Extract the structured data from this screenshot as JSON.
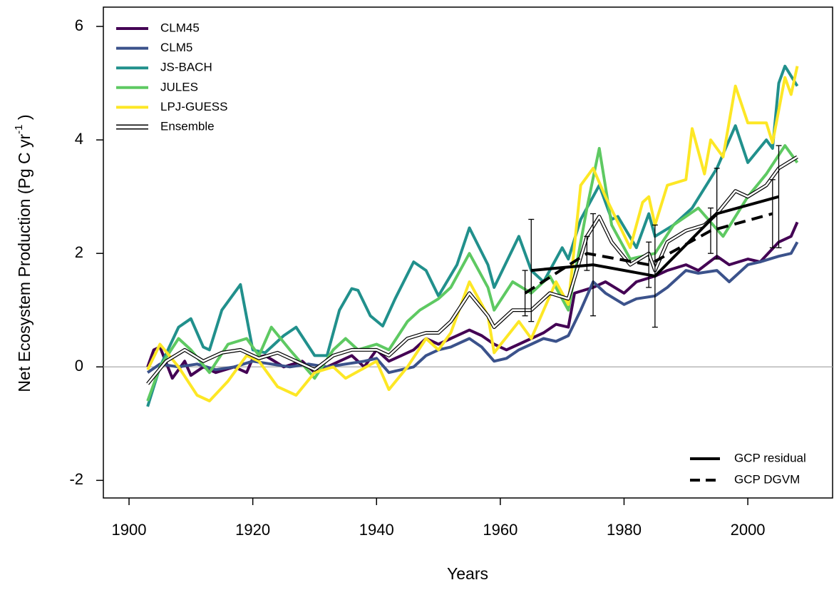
{
  "chart_data": {
    "type": "line",
    "xlabel": "Years",
    "ylabel": {
      "text": "Net Ecosystem Production (Pg C yr",
      "sup": "-1",
      "close": " )"
    },
    "xlim": [
      1895.85,
      2013.7
    ],
    "ylim": [
      -2.31,
      6.34
    ],
    "xticks": [
      1900,
      1920,
      1940,
      1960,
      1980,
      2000
    ],
    "yticks": [
      -2,
      0,
      2,
      4,
      6
    ],
    "hline": 0,
    "legend": "top-left",
    "series": [
      {
        "name": "CLM45",
        "color": "#440154",
        "x": [
          1903,
          1904,
          1905,
          1907,
          1909,
          1910,
          1912,
          1914,
          1917,
          1919,
          1920,
          1922,
          1925,
          1928,
          1930,
          1933,
          1936,
          1938,
          1940,
          1942,
          1944,
          1946,
          1948,
          1950,
          1952,
          1955,
          1957,
          1959,
          1961,
          1963,
          1965,
          1967,
          1969,
          1971,
          1972,
          1975,
          1977,
          1980,
          1982,
          1985,
          1987,
          1990,
          1992,
          1995,
          1997,
          2000,
          2002,
          2005,
          2007,
          2008
        ],
        "values": [
          0,
          0.3,
          0.35,
          -0.2,
          0.1,
          -0.15,
          0,
          -0.1,
          0,
          -0.1,
          0.15,
          0.2,
          0,
          0.1,
          -0.1,
          0.05,
          0.2,
          0,
          0.3,
          0.1,
          0.2,
          0.3,
          0.5,
          0.4,
          0.5,
          0.65,
          0.55,
          0.4,
          0.3,
          0.4,
          0.5,
          0.6,
          0.75,
          0.7,
          1.3,
          1.4,
          1.5,
          1.3,
          1.5,
          1.6,
          1.7,
          1.8,
          1.7,
          1.95,
          1.8,
          1.9,
          1.85,
          2.2,
          2.3,
          2.55
        ]
      },
      {
        "name": "CLM5",
        "color": "#3b528b",
        "x": [
          1903,
          1905,
          1908,
          1911,
          1914,
          1917,
          1920,
          1923,
          1926,
          1929,
          1932,
          1935,
          1938,
          1940,
          1942,
          1944,
          1946,
          1948,
          1950,
          1952,
          1955,
          1957,
          1959,
          1961,
          1963,
          1965,
          1967,
          1969,
          1971,
          1973,
          1975,
          1977,
          1980,
          1982,
          1985,
          1987,
          1990,
          1992,
          1995,
          1997,
          2000,
          2002,
          2005,
          2007,
          2008
        ],
        "values": [
          -0.1,
          0.05,
          0,
          0.05,
          -0.05,
          0,
          0.1,
          0.05,
          0,
          0.05,
          0,
          0.05,
          0.1,
          0.15,
          -0.1,
          -0.05,
          0,
          0.2,
          0.3,
          0.35,
          0.5,
          0.35,
          0.1,
          0.15,
          0.3,
          0.4,
          0.5,
          0.45,
          0.55,
          1.0,
          1.5,
          1.3,
          1.1,
          1.2,
          1.25,
          1.4,
          1.7,
          1.65,
          1.7,
          1.5,
          1.8,
          1.85,
          1.95,
          2.0,
          2.2
        ]
      },
      {
        "name": "JS-BACH",
        "color": "#21908c",
        "x": [
          1903,
          1905,
          1908,
          1910,
          1912,
          1913,
          1915,
          1918,
          1920,
          1922,
          1925,
          1927,
          1930,
          1932,
          1934,
          1936,
          1937,
          1939,
          1941,
          1943,
          1946,
          1948,
          1950,
          1953,
          1955,
          1958,
          1959,
          1963,
          1965,
          1967,
          1970,
          1971,
          1973,
          1976,
          1978,
          1979,
          1982,
          1984,
          1985,
          1988,
          1991,
          1995,
          1998,
          2000,
          2003,
          2004,
          2005,
          2006,
          2008
        ],
        "values": [
          -0.7,
          0,
          0.7,
          0.85,
          0.35,
          0.3,
          1.0,
          1.45,
          0.3,
          0.25,
          0.55,
          0.7,
          0.2,
          0.2,
          1.0,
          1.38,
          1.35,
          0.9,
          0.72,
          1.2,
          1.85,
          1.7,
          1.25,
          1.8,
          2.45,
          1.8,
          1.4,
          2.3,
          1.7,
          1.5,
          2.1,
          1.9,
          2.6,
          3.2,
          2.6,
          2.65,
          2.1,
          2.7,
          2.3,
          2.5,
          2.8,
          3.5,
          4.25,
          3.6,
          4.0,
          3.85,
          5.0,
          5.3,
          4.95
        ]
      },
      {
        "name": "JULES",
        "color": "#5ec962",
        "x": [
          1903,
          1905,
          1908,
          1910,
          1913,
          1916,
          1919,
          1921,
          1923,
          1926,
          1930,
          1933,
          1935,
          1937,
          1940,
          1942,
          1945,
          1947,
          1950,
          1952,
          1955,
          1958,
          1959,
          1962,
          1965,
          1968,
          1971,
          1974,
          1976,
          1978,
          1981,
          1985,
          1988,
          1992,
          1996,
          2000,
          2003,
          2006,
          2008
        ],
        "values": [
          -0.6,
          0,
          0.5,
          0.3,
          -0.1,
          0.4,
          0.5,
          0.2,
          0.7,
          0.3,
          -0.2,
          0.3,
          0.5,
          0.3,
          0.4,
          0.3,
          0.8,
          1.0,
          1.2,
          1.4,
          2.0,
          1.4,
          1.0,
          1.5,
          1.3,
          1.6,
          1.0,
          2.8,
          3.85,
          2.5,
          1.9,
          2.0,
          2.5,
          2.8,
          2.3,
          3.0,
          3.4,
          3.9,
          3.6
        ]
      },
      {
        "name": "LPJ-GUESS",
        "color": "#fde725",
        "x": [
          1903,
          1905,
          1908,
          1911,
          1913,
          1916,
          1919,
          1921,
          1924,
          1927,
          1930,
          1933,
          1935,
          1940,
          1942,
          1945,
          1948,
          1950,
          1952,
          1955,
          1958,
          1959,
          1963,
          1965,
          1969,
          1971,
          1973,
          1975,
          1977,
          1981,
          1983,
          1984,
          1985,
          1987,
          1990,
          1991,
          1993,
          1994,
          1996,
          1998,
          2000,
          2003,
          2004,
          2006,
          2007,
          2008
        ],
        "values": [
          -0.05,
          0.4,
          0,
          -0.5,
          -0.6,
          -0.25,
          0.2,
          0.1,
          -0.35,
          -0.5,
          -0.1,
          0,
          -0.2,
          0.1,
          -0.4,
          0,
          0.5,
          0.3,
          0.6,
          1.5,
          0.9,
          0.25,
          0.8,
          0.5,
          1.5,
          1.1,
          3.2,
          3.5,
          3.0,
          2.1,
          2.9,
          3.0,
          2.5,
          3.2,
          3.3,
          4.2,
          3.4,
          4.0,
          3.7,
          4.95,
          4.3,
          4.3,
          3.95,
          5.1,
          4.8,
          5.3
        ]
      },
      {
        "name": "Ensemble",
        "color": "#ffffff",
        "outline": "#000000",
        "x": [
          1903,
          1906,
          1909,
          1912,
          1915,
          1918,
          1921,
          1924,
          1927,
          1930,
          1933,
          1936,
          1940,
          1942,
          1945,
          1948,
          1950,
          1952,
          1955,
          1958,
          1959,
          1962,
          1965,
          1968,
          1971,
          1974,
          1976,
          1978,
          1981,
          1984,
          1985,
          1987,
          1990,
          1993,
          1995,
          1998,
          2000,
          2003,
          2005,
          2008
        ],
        "values": [
          -0.3,
          0.1,
          0.3,
          0.1,
          0.25,
          0.3,
          0.15,
          0.25,
          0.1,
          -0.05,
          0.2,
          0.3,
          0.3,
          0.2,
          0.5,
          0.6,
          0.6,
          0.8,
          1.3,
          0.9,
          0.7,
          1.0,
          1.0,
          1.3,
          1.2,
          2.3,
          2.65,
          2.2,
          1.8,
          2.0,
          1.7,
          2.2,
          2.4,
          2.5,
          2.7,
          3.1,
          3.0,
          3.2,
          3.5,
          3.7
        ]
      }
    ],
    "reference": {
      "legend": "bottom-right",
      "series": [
        {
          "name": "GCP residual",
          "color": "#000000",
          "style": "solid",
          "x": [
            1965,
            1975,
            1985,
            1995,
            2005
          ],
          "values": [
            1.7,
            1.8,
            1.6,
            2.7,
            3.0
          ],
          "errors": [
            0.9,
            0.9,
            0.9,
            0.8,
            0.9
          ]
        },
        {
          "name": "GCP DGVM",
          "color": "#000000",
          "style": "dashed",
          "x": [
            1964,
            1974,
            1984,
            1994,
            2004
          ],
          "values": [
            1.3,
            2.0,
            1.8,
            2.4,
            2.7
          ],
          "errors": [
            0.4,
            0.3,
            0.4,
            0.4,
            0.6
          ]
        }
      ]
    }
  }
}
